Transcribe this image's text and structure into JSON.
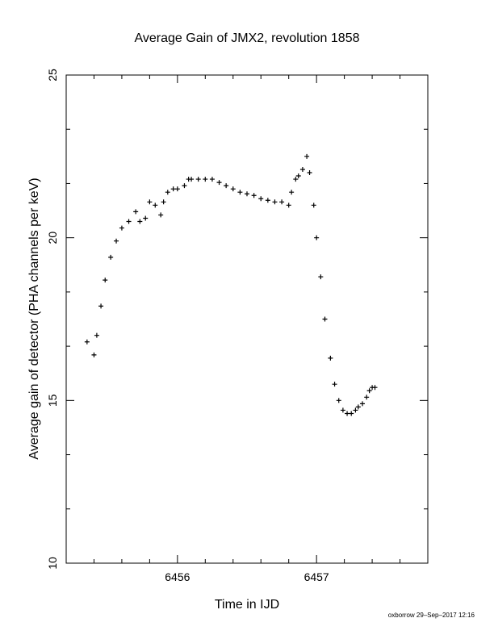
{
  "chart_data": {
    "type": "scatter",
    "title": "Average Gain of JMX2, revolution 1858",
    "xlabel": "Time in IJD",
    "ylabel": "Average gain of detector (PHA channels per keV)",
    "xlim": [
      6455.2,
      6457.8
    ],
    "ylim": [
      10,
      25
    ],
    "xticks": [
      6456,
      6457
    ],
    "xtick_labels": [
      "6456",
      "6457"
    ],
    "yticks": [
      10,
      15,
      20,
      25
    ],
    "ytick_labels": [
      "10",
      "15",
      "20",
      "25"
    ],
    "marker": "plus",
    "grid": false,
    "series": [
      {
        "color": "#000000",
        "x": [
          6455.35,
          6455.4,
          6455.42,
          6455.45,
          6455.48,
          6455.52,
          6455.56,
          6455.6,
          6455.65,
          6455.7,
          6455.73,
          6455.77,
          6455.8,
          6455.84,
          6455.88,
          6455.9,
          6455.93,
          6455.97,
          6456.0,
          6456.05,
          6456.08,
          6456.1,
          6456.15,
          6456.2,
          6456.25,
          6456.3,
          6456.35,
          6456.4,
          6456.45,
          6456.5,
          6456.55,
          6456.6,
          6456.65,
          6456.7,
          6456.75,
          6456.8,
          6456.82,
          6456.85,
          6456.87,
          6456.9,
          6456.93,
          6456.95,
          6456.98,
          6457.0,
          6457.03,
          6457.06,
          6457.1,
          6457.13,
          6457.16,
          6457.19,
          6457.22,
          6457.25,
          6457.28,
          6457.3,
          6457.33,
          6457.36,
          6457.38,
          6457.4,
          6457.42
        ],
        "y": [
          16.8,
          16.4,
          17.0,
          17.9,
          18.7,
          19.4,
          19.9,
          20.3,
          20.5,
          20.8,
          20.5,
          20.6,
          21.1,
          21.0,
          20.7,
          21.1,
          21.4,
          21.5,
          21.5,
          21.6,
          21.8,
          21.8,
          21.8,
          21.8,
          21.8,
          21.7,
          21.6,
          21.5,
          21.4,
          21.35,
          21.3,
          21.2,
          21.15,
          21.1,
          21.1,
          21.0,
          21.4,
          21.8,
          21.9,
          22.1,
          22.5,
          22.0,
          21.0,
          20.0,
          18.8,
          17.5,
          16.3,
          15.5,
          15.0,
          14.7,
          14.6,
          14.6,
          14.7,
          14.8,
          14.9,
          15.1,
          15.3,
          15.4,
          15.4
        ]
      }
    ]
  },
  "footer": {
    "credit": "oxborrow 29–Sep–2017 12:16"
  }
}
